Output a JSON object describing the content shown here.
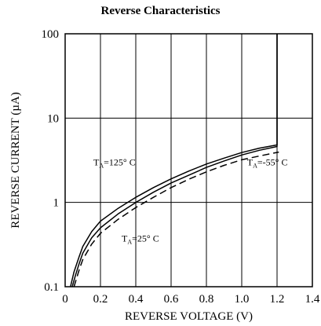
{
  "chart_data": {
    "type": "line",
    "title": "Reverse Characteristics",
    "xlabel": "REVERSE VOLTAGE (V)",
    "ylabel": "REVERSE CURRENT (µA)",
    "xlim": [
      0,
      1.4
    ],
    "ylim": [
      0.1,
      100
    ],
    "yscale": "log",
    "grid": true,
    "x_ticks": [
      0,
      0.2,
      0.4,
      0.6,
      0.8,
      1.0,
      1.2,
      1.4
    ],
    "x_tick_labels": [
      "0",
      "0.2",
      "0.4",
      "0.6",
      "0.8",
      "1.0",
      "1.2",
      "1.4"
    ],
    "y_ticks": [
      0.1,
      1,
      10,
      100
    ],
    "y_tick_labels": [
      "0.1",
      "1",
      "10",
      "100"
    ],
    "series": [
      {
        "style": "solid",
        "x": [
          0.03,
          0.05,
          0.08,
          0.1,
          0.15,
          0.2,
          0.3,
          0.4,
          0.5,
          0.6,
          0.7,
          0.8,
          0.9,
          1.0,
          1.1,
          1.2,
          1.2,
          1.2
        ],
        "y": [
          0.1,
          0.15,
          0.23,
          0.3,
          0.45,
          0.6,
          0.85,
          1.15,
          1.5,
          1.9,
          2.35,
          2.85,
          3.35,
          3.9,
          4.4,
          4.8,
          20,
          100
        ]
      },
      {
        "style": "solid",
        "x": [
          0.04,
          0.06,
          0.08,
          0.1,
          0.15,
          0.2,
          0.3,
          0.4,
          0.5,
          0.6,
          0.7,
          0.8,
          0.9,
          1.0,
          1.1,
          1.2,
          1.2,
          1.2
        ],
        "y": [
          0.1,
          0.14,
          0.19,
          0.25,
          0.38,
          0.5,
          0.73,
          1.0,
          1.32,
          1.7,
          2.1,
          2.6,
          3.1,
          3.65,
          4.15,
          4.6,
          20,
          100
        ]
      },
      {
        "style": "dashed",
        "x": [
          0.05,
          0.08,
          0.1,
          0.15,
          0.2,
          0.3,
          0.4,
          0.5,
          0.6,
          0.7,
          0.8,
          0.9,
          1.0,
          1.1,
          1.21
        ],
        "y": [
          0.1,
          0.16,
          0.21,
          0.32,
          0.43,
          0.63,
          0.87,
          1.15,
          1.5,
          1.88,
          2.3,
          2.75,
          3.2,
          3.55,
          3.95
        ]
      }
    ],
    "annotations": [
      {
        "main": "T",
        "sub": "A",
        "rest": "=125° C",
        "x": 0.16,
        "y": 2.75
      },
      {
        "main": "T",
        "sub": "A",
        "rest": "=-55° C",
        "x": 1.03,
        "y": 2.75
      },
      {
        "main": "T",
        "sub": "A",
        "rest": "=25° C",
        "x": 0.32,
        "y": 0.345
      }
    ]
  }
}
